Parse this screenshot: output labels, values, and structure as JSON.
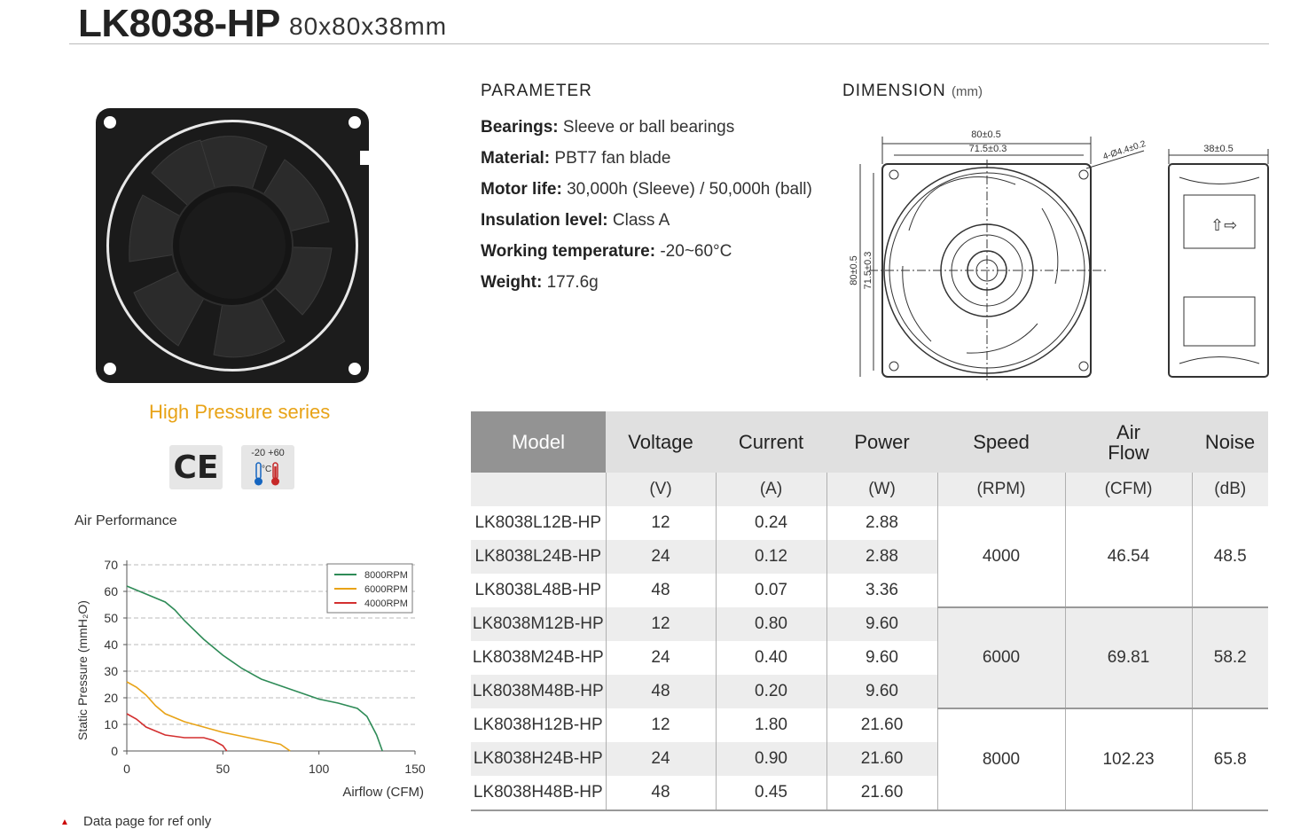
{
  "header": {
    "model": "LK8038-HP",
    "size": "80x80x38mm"
  },
  "series_label": "High Pressure series",
  "certifications": {
    "ce": "CE",
    "temp_range": "-20 +60",
    "temp_unit": "°C"
  },
  "parameters": {
    "title": "PARAMETER",
    "items": [
      {
        "label": "Bearings:",
        "value": "Sleeve  or ball bearings"
      },
      {
        "label": "Material:",
        "value": "PBT7 fan blade"
      },
      {
        "label": "Motor life:",
        "value": "30,000h (Sleeve) / 50,000h (ball)"
      },
      {
        "label": "Insulation level:",
        "value": "Class A"
      },
      {
        "label": "Working temperature:",
        "value": "-20~60°C"
      },
      {
        "label": "Weight:",
        "value": "177.6g"
      }
    ]
  },
  "dimension": {
    "title": "DIMENSION",
    "unit": "(mm)",
    "labels": {
      "outer_w": "80±0.5",
      "hole_w": "71.5±0.3",
      "hole_dia": "4-Ø4.4±0.2",
      "depth": "38±0.5",
      "outer_h": "80±0.5",
      "hole_h": "71.5±0.3"
    }
  },
  "spec_table": {
    "headers": [
      "Model",
      "Voltage",
      "Current",
      "Power",
      "Speed",
      "Air\nFlow",
      "Noise"
    ],
    "units": [
      "",
      "(V)",
      "(A)",
      "(W)",
      "(RPM)",
      "(CFM)",
      "(dB)"
    ],
    "rows": [
      {
        "model": "LK8038L12B-HP",
        "voltage": "12",
        "current": "0.24",
        "power": "2.88"
      },
      {
        "model": "LK8038L24B-HP",
        "voltage": "24",
        "current": "0.12",
        "power": "2.88"
      },
      {
        "model": "LK8038L48B-HP",
        "voltage": "48",
        "current": "0.07",
        "power": "3.36"
      },
      {
        "model": "LK8038M12B-HP",
        "voltage": "12",
        "current": "0.80",
        "power": "9.60"
      },
      {
        "model": "LK8038M24B-HP",
        "voltage": "24",
        "current": "0.40",
        "power": "9.60"
      },
      {
        "model": "LK8038M48B-HP",
        "voltage": "48",
        "current": "0.20",
        "power": "9.60"
      },
      {
        "model": "LK8038H12B-HP",
        "voltage": "12",
        "current": "1.80",
        "power": "21.60"
      },
      {
        "model": "LK8038H24B-HP",
        "voltage": "24",
        "current": "0.90",
        "power": "21.60"
      },
      {
        "model": "LK8038H48B-HP",
        "voltage": "48",
        "current": "0.45",
        "power": "21.60"
      }
    ],
    "groups": [
      {
        "speed": "4000",
        "airflow": "46.54",
        "noise": "48.5"
      },
      {
        "speed": "6000",
        "airflow": "69.81",
        "noise": "58.2"
      },
      {
        "speed": "8000",
        "airflow": "102.23",
        "noise": "65.8"
      }
    ]
  },
  "chart_data": {
    "type": "line",
    "title": "Air Performance",
    "xlabel": "Airflow (CFM)",
    "ylabel": "Static Pressure (mmH₂O)",
    "xlim": [
      0,
      150
    ],
    "ylim": [
      0,
      70
    ],
    "xticks": [
      0,
      50,
      100,
      150
    ],
    "yticks": [
      0,
      10,
      20,
      30,
      40,
      50,
      60,
      70
    ],
    "grid": "dashed horizontal",
    "legend_position": "top-right",
    "series": [
      {
        "name": "8000RPM",
        "color": "#2e8b57",
        "points": [
          [
            0,
            62
          ],
          [
            10,
            59
          ],
          [
            20,
            56
          ],
          [
            25,
            53
          ],
          [
            30,
            49
          ],
          [
            40,
            42
          ],
          [
            50,
            36
          ],
          [
            60,
            31
          ],
          [
            70,
            27
          ],
          [
            80,
            24.5
          ],
          [
            90,
            22
          ],
          [
            100,
            19.5
          ],
          [
            110,
            18
          ],
          [
            120,
            16
          ],
          [
            125,
            13
          ],
          [
            130,
            6
          ],
          [
            133,
            0
          ]
        ]
      },
      {
        "name": "6000RPM",
        "color": "#e8a317",
        "points": [
          [
            0,
            26
          ],
          [
            5,
            24
          ],
          [
            10,
            21
          ],
          [
            15,
            17
          ],
          [
            20,
            14
          ],
          [
            30,
            11
          ],
          [
            40,
            9
          ],
          [
            50,
            7
          ],
          [
            60,
            5.5
          ],
          [
            70,
            4
          ],
          [
            80,
            2.5
          ],
          [
            85,
            0
          ]
        ]
      },
      {
        "name": "4000RPM",
        "color": "#d32f2f",
        "points": [
          [
            0,
            14
          ],
          [
            5,
            12
          ],
          [
            10,
            9
          ],
          [
            20,
            6
          ],
          [
            30,
            5
          ],
          [
            40,
            5
          ],
          [
            45,
            4
          ],
          [
            50,
            2
          ],
          [
            52,
            0
          ]
        ]
      }
    ]
  },
  "note": "Data page for ref only"
}
